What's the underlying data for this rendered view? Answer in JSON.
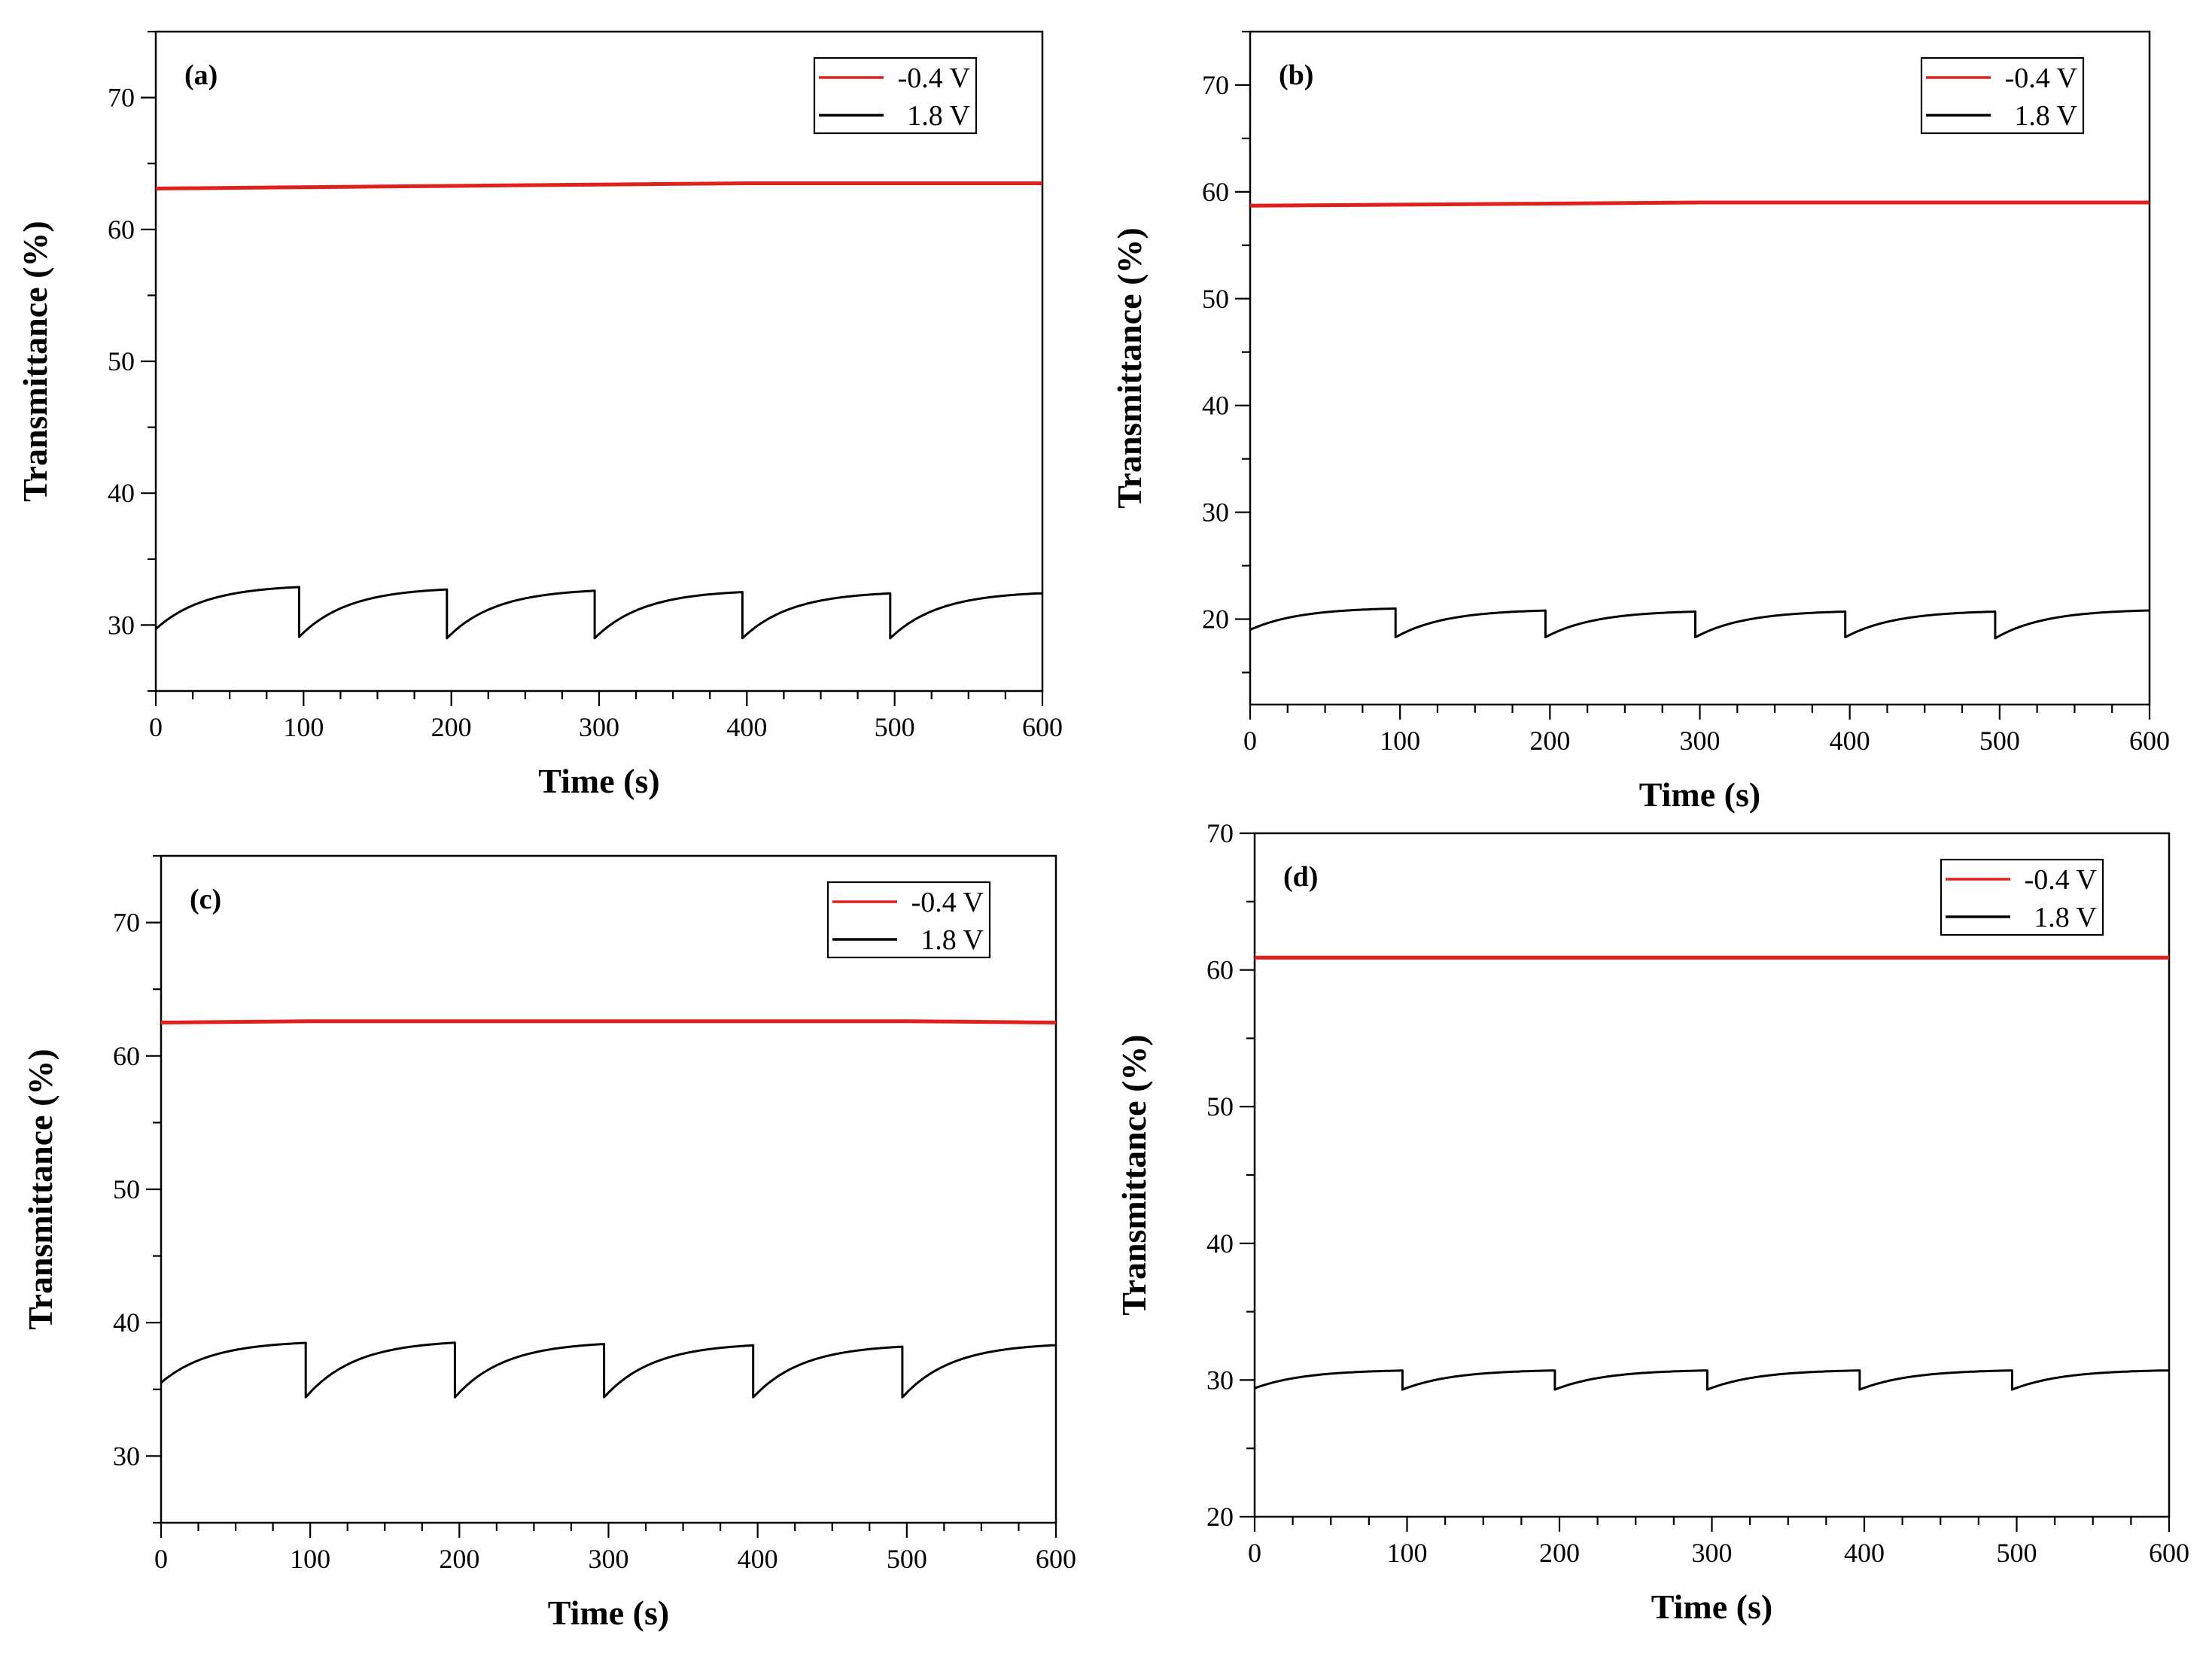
{
  "colors": {
    "red_series": "#e0201b",
    "black_series": "#000000",
    "axis": "#000000",
    "background": "#ffffff"
  },
  "chart_data": [
    {
      "type": "line",
      "panel_label": "(a)",
      "xlabel": "Time (s)",
      "ylabel": "Transmittance (%)",
      "xlim": [
        0,
        600
      ],
      "ylim": [
        25,
        75
      ],
      "x_ticks": [
        0,
        100,
        200,
        300,
        400,
        500,
        600
      ],
      "y_ticks": [
        30,
        40,
        50,
        60,
        70
      ],
      "legend": {
        "position": "top-right",
        "entries": [
          "-0.4 V",
          "1.8 V"
        ]
      },
      "series": [
        {
          "name": "-0.4 V",
          "color": "#e0201b",
          "x": [
            0,
            100,
            200,
            300,
            400,
            500,
            600
          ],
          "y": [
            63.1,
            63.2,
            63.3,
            63.4,
            63.5,
            63.5,
            63.5
          ]
        },
        {
          "name": "1.8 V",
          "color": "#000000",
          "period": 100,
          "step_times": [
            97,
            197,
            297,
            397,
            497
          ],
          "cycle_min": [
            29.7,
            29.1,
            29.0,
            29.0,
            29.0,
            29.0
          ],
          "cycle_max": [
            32.9,
            32.7,
            32.6,
            32.5,
            32.4,
            32.4
          ]
        }
      ]
    },
    {
      "type": "line",
      "panel_label": "(b)",
      "xlabel": "Time (s)",
      "ylabel": "Transmittance (%)",
      "xlim": [
        0,
        600
      ],
      "ylim": [
        12,
        75
      ],
      "x_ticks": [
        0,
        100,
        200,
        300,
        400,
        500,
        600
      ],
      "y_ticks": [
        20,
        30,
        40,
        50,
        60,
        70
      ],
      "legend": {
        "position": "top-right",
        "entries": [
          "-0.4 V",
          "1.8 V"
        ]
      },
      "series": [
        {
          "name": "-0.4 V",
          "color": "#e0201b",
          "x": [
            0,
            100,
            200,
            300,
            400,
            500,
            600
          ],
          "y": [
            58.7,
            58.8,
            58.9,
            59.0,
            59.0,
            59.0,
            59.0
          ]
        },
        {
          "name": "1.8 V",
          "color": "#000000",
          "period": 100,
          "step_times": [
            97,
            197,
            297,
            397,
            497
          ],
          "cycle_min": [
            19.0,
            18.3,
            18.3,
            18.3,
            18.3,
            18.2
          ],
          "cycle_max": [
            21.0,
            20.8,
            20.7,
            20.7,
            20.7,
            20.8
          ]
        }
      ]
    },
    {
      "type": "line",
      "panel_label": "(c)",
      "xlabel": "Time (s)",
      "ylabel": "Transmittance (%)",
      "xlim": [
        0,
        600
      ],
      "ylim": [
        25,
        75
      ],
      "x_ticks": [
        0,
        100,
        200,
        300,
        400,
        500,
        600
      ],
      "y_ticks": [
        30,
        40,
        50,
        60,
        70
      ],
      "legend": {
        "position": "top-right",
        "entries": [
          "-0.4 V",
          "1.8 V"
        ]
      },
      "series": [
        {
          "name": "-0.4 V",
          "color": "#e0201b",
          "x": [
            0,
            100,
            200,
            300,
            400,
            500,
            600
          ],
          "y": [
            62.5,
            62.6,
            62.6,
            62.6,
            62.6,
            62.6,
            62.5
          ]
        },
        {
          "name": "1.8 V",
          "color": "#000000",
          "period": 100,
          "step_times": [
            97,
            197,
            297,
            397,
            497
          ],
          "cycle_min": [
            35.5,
            34.4,
            34.4,
            34.4,
            34.4,
            34.4
          ],
          "cycle_max": [
            38.5,
            38.5,
            38.4,
            38.3,
            38.2,
            38.3
          ]
        }
      ]
    },
    {
      "type": "line",
      "panel_label": "(d)",
      "xlabel": "Time (s)",
      "ylabel": "Transmittance (%)",
      "xlim": [
        0,
        600
      ],
      "ylim": [
        20,
        70
      ],
      "x_ticks": [
        0,
        100,
        200,
        300,
        400,
        500,
        600
      ],
      "y_ticks": [
        20,
        30,
        40,
        50,
        60,
        70
      ],
      "legend": {
        "position": "top-right",
        "entries": [
          "-0.4 V",
          "1.8 V"
        ]
      },
      "series": [
        {
          "name": "-0.4 V",
          "color": "#e0201b",
          "x": [
            0,
            100,
            200,
            300,
            400,
            500,
            600
          ],
          "y": [
            60.9,
            60.9,
            60.9,
            60.9,
            60.9,
            60.9,
            60.9
          ]
        },
        {
          "name": "1.8 V",
          "color": "#000000",
          "period": 100,
          "step_times": [
            97,
            197,
            297,
            397,
            497
          ],
          "cycle_min": [
            29.4,
            29.3,
            29.3,
            29.3,
            29.3,
            29.3
          ],
          "cycle_max": [
            30.7,
            30.7,
            30.7,
            30.7,
            30.7,
            30.7
          ]
        }
      ]
    }
  ]
}
